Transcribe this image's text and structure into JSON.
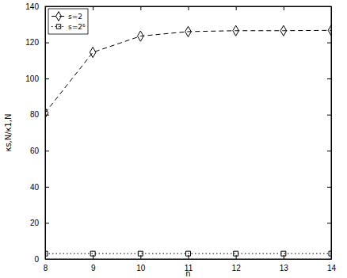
{
  "chart_data": {
    "type": "line",
    "x_label": "n",
    "y_label": "κs,N/κ1,N",
    "x": [
      8,
      9,
      10,
      11,
      12,
      13,
      14
    ],
    "series": [
      {
        "name": "s=2",
        "color": "#000000",
        "marker": "diamond",
        "line_style": "dashed",
        "values": [
          81,
          114.5,
          123.5,
          126,
          126.5,
          126.5,
          126.7
        ]
      },
      {
        "name": "s=2⁶",
        "color": "#000000",
        "marker": "square",
        "line_style": "dotted",
        "values": [
          3,
          3,
          3,
          3,
          3,
          3,
          3
        ]
      }
    ],
    "xlim": [
      8,
      14
    ],
    "xticks": [
      8,
      9,
      10,
      11,
      12,
      13,
      14
    ],
    "ylim": [
      0,
      140
    ],
    "yticks": [
      0,
      20,
      40,
      60,
      80,
      100,
      120,
      140
    ],
    "legend": "upper-left",
    "grid": false
  }
}
